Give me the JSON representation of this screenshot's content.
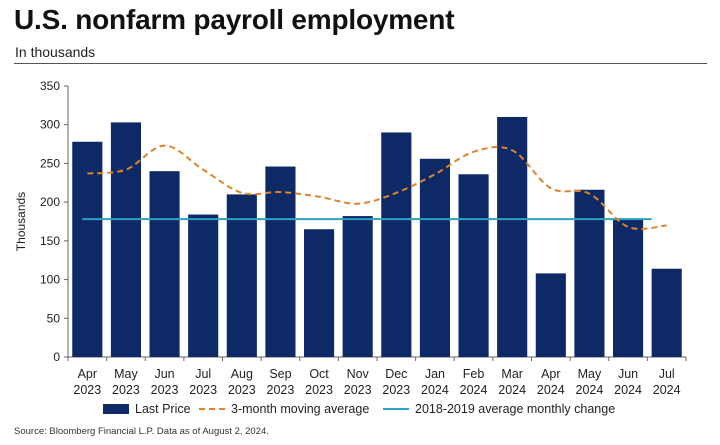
{
  "title": "U.S. nonfarm payroll employment",
  "subtitle": "In thousands",
  "source": "Source: Bloomberg Financial L.P. Data as of August 2, 2024.",
  "colors": {
    "bars": "#0e2a66",
    "moving_average": "#e0822a",
    "benchmark": "#2ea2c2",
    "axis": "#666666"
  },
  "chart_data": {
    "type": "bar",
    "categories": [
      [
        "Apr",
        "2023"
      ],
      [
        "May",
        "2023"
      ],
      [
        "Jun",
        "2023"
      ],
      [
        "Jul",
        "2023"
      ],
      [
        "Aug",
        "2023"
      ],
      [
        "Sep",
        "2023"
      ],
      [
        "Oct",
        "2023"
      ],
      [
        "Nov",
        "2023"
      ],
      [
        "Dec",
        "2023"
      ],
      [
        "Jan",
        "2024"
      ],
      [
        "Feb",
        "2024"
      ],
      [
        "Mar",
        "2024"
      ],
      [
        "Apr",
        "2024"
      ],
      [
        "May",
        "2024"
      ],
      [
        "Jun",
        "2024"
      ],
      [
        "Jul",
        "2024"
      ]
    ],
    "series": [
      {
        "name": "Last Price",
        "kind": "bar",
        "values": [
          278,
          303,
          240,
          184,
          210,
          246,
          165,
          182,
          290,
          256,
          236,
          310,
          108,
          216,
          179,
          114
        ]
      },
      {
        "name": "3-month moving average",
        "kind": "dashed-line",
        "values": [
          237,
          242,
          273,
          242,
          212,
          213,
          207,
          198,
          212,
          236,
          265,
          267,
          218,
          211,
          168,
          170
        ]
      },
      {
        "name": "2018-2019 average monthly change",
        "kind": "flat-line",
        "values": [
          178,
          178,
          178,
          178,
          178,
          178,
          178,
          178,
          178,
          178,
          178,
          178,
          178,
          178,
          178,
          178
        ]
      }
    ],
    "ylabel": "Thousands",
    "ylim": [
      0,
      350
    ],
    "yticks": [
      0,
      50,
      100,
      150,
      200,
      250,
      300,
      350
    ],
    "grid": false,
    "legend_position": "bottom"
  }
}
